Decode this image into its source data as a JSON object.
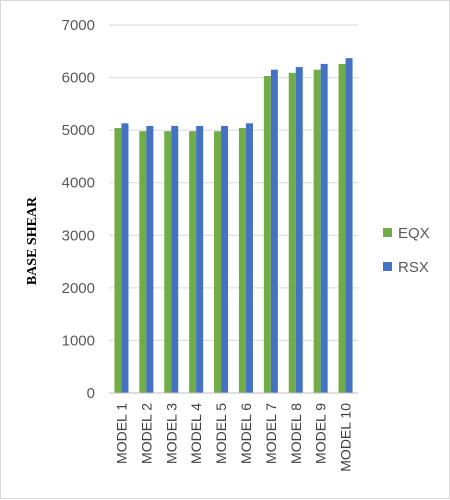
{
  "chart_data": {
    "type": "bar",
    "title": "",
    "xlabel": "",
    "ylabel": "BASE SHEAR",
    "ylim": [
      0,
      7000
    ],
    "yticks": [
      0,
      1000,
      2000,
      3000,
      4000,
      5000,
      6000,
      7000
    ],
    "grid": "horizontal",
    "legend_position": "right",
    "categories": [
      "MODEL 1",
      "MODEL 2",
      "MODEL 3",
      "MODEL 4",
      "MODEL 5",
      "MODEL 6",
      "MODEL 7",
      "MODEL 8",
      "MODEL 9",
      "MODEL 10"
    ],
    "series": [
      {
        "name": "EQX",
        "color": "#70ad47",
        "values": [
          5040,
          4980,
          4980,
          4980,
          4980,
          5040,
          6030,
          6090,
          6150,
          6260
        ]
      },
      {
        "name": "RSX",
        "color": "#4472c4",
        "values": [
          5130,
          5080,
          5080,
          5080,
          5080,
          5130,
          6150,
          6200,
          6260,
          6370
        ]
      }
    ]
  }
}
